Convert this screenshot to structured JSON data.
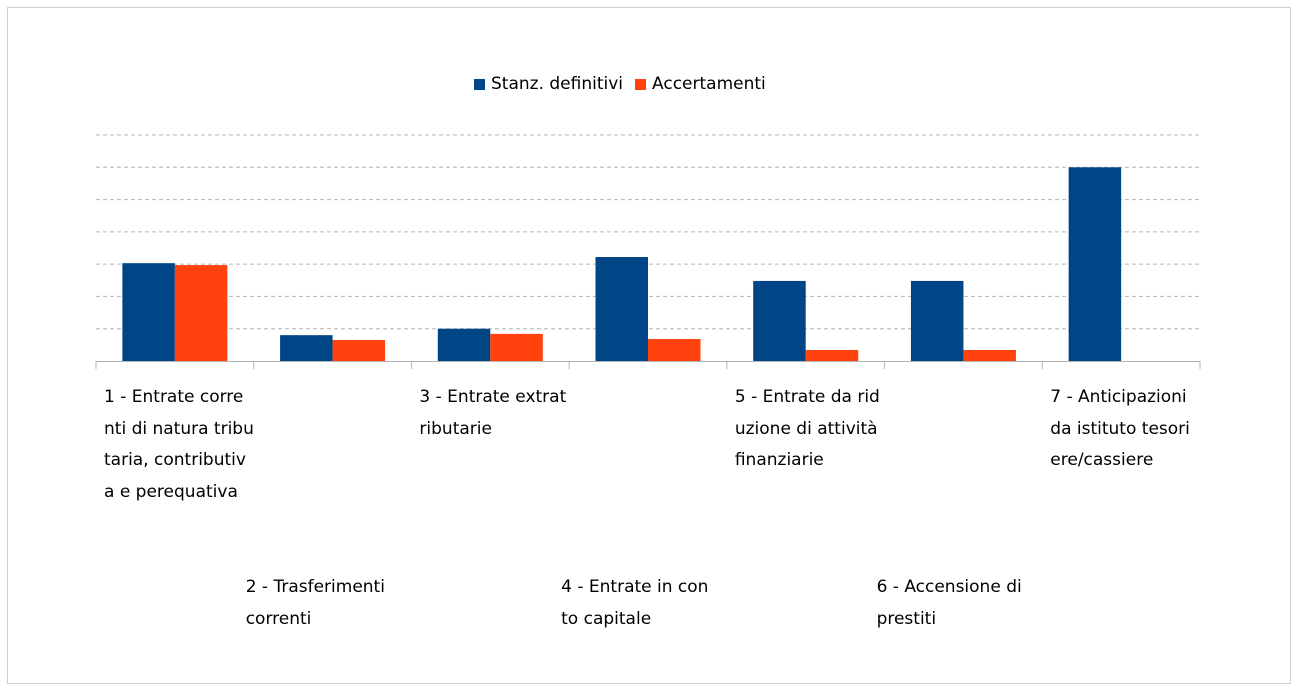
{
  "chart_data": {
    "type": "bar",
    "categories": [
      "1 - Entrate correnti di natura tributaria, contributiva e perequativa",
      "2 - Trasferimenti correnti",
      "3 - Entrate extratributarie",
      "4 - Entrate in conto capitale",
      "5 - Entrate da riduzione di attività finanziarie",
      "6 - Accensione di prestiti",
      "7 - Anticipazioni da istituto tesoriere/cassiere"
    ],
    "series": [
      {
        "name": "Stanz. definitivi",
        "color": "#004586",
        "values": [
          3.03,
          0.8,
          1.0,
          3.22,
          2.48,
          2.48,
          6.0
        ]
      },
      {
        "name": "Accertamenti",
        "color": "#ff420e",
        "values": [
          2.97,
          0.65,
          0.84,
          0.68,
          0.34,
          0.34,
          0
        ]
      }
    ],
    "ylim": [
      0,
      7
    ],
    "yticks": [
      0,
      1,
      2,
      3,
      4,
      5,
      6,
      7
    ],
    "grid": true,
    "legend": "top"
  }
}
